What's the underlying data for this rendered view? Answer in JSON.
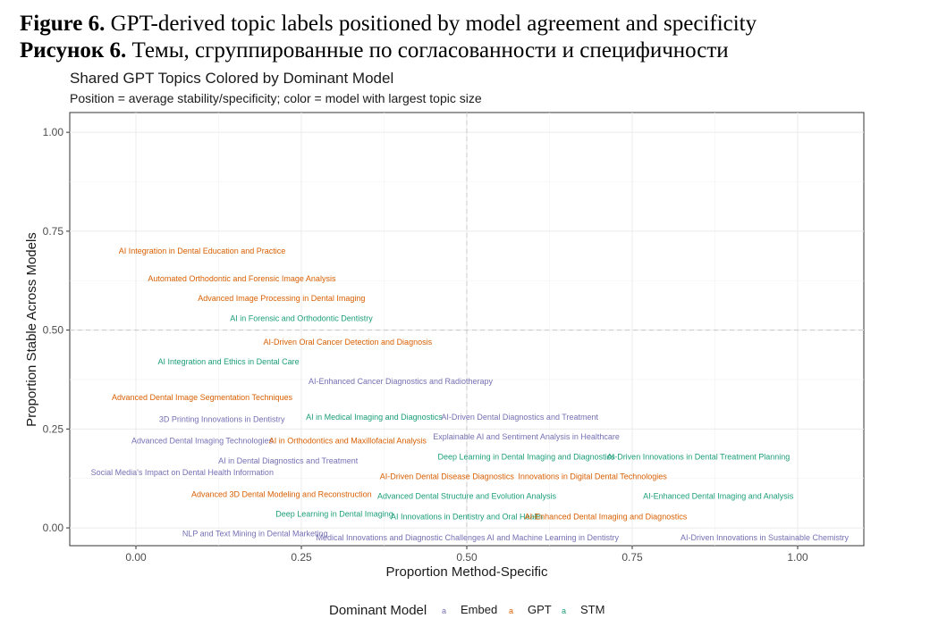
{
  "captions": {
    "line1_bold": "Figure 6.",
    "line1_text": " GPT-derived topic labels positioned by model agreement and specificity",
    "line2_bold": "Рисунок 6.",
    "line2_text": " Темы, сгруппированные по согласованности и специфичности"
  },
  "chart_data": {
    "type": "scatter",
    "title": "Shared GPT Topics Colored by Dominant Model",
    "subtitle": "Position = average stability/specificity; color = model with largest topic size",
    "xlabel": "Proportion Method-Specific",
    "ylabel": "Proportion Stable Across Models",
    "xlim": [
      -0.1,
      1.1
    ],
    "ylim": [
      -0.045,
      1.05
    ],
    "xticks": [
      0.0,
      0.25,
      0.5,
      0.75,
      1.0
    ],
    "xtick_labels": [
      "0.00",
      "0.25",
      "0.50",
      "0.75",
      "1.00"
    ],
    "yticks": [
      0.0,
      0.25,
      0.5,
      0.75,
      1.0
    ],
    "ytick_labels": [
      "0.00",
      "0.25",
      "0.50",
      "0.75",
      "1.00"
    ],
    "reference_lines": {
      "x": 0.5,
      "y": 0.5,
      "style": "dashed"
    },
    "grid": true,
    "legend": {
      "title": "Dominant Model",
      "position": "bottom",
      "glyph": "a",
      "entries": [
        {
          "name": "Embed",
          "color": "#7570b3"
        },
        {
          "name": "GPT",
          "color": "#d95f02"
        },
        {
          "name": "STM",
          "color": "#1b9e77"
        }
      ]
    },
    "points": [
      {
        "label": "AI Integration in Dental Education and Practice",
        "model": "GPT",
        "x": 0.1,
        "y": 0.7
      },
      {
        "label": "Automated Orthodontic and Forensic Image Analysis",
        "model": "GPT",
        "x": 0.16,
        "y": 0.63
      },
      {
        "label": "Advanced Image Processing in Dental Imaging",
        "model": "GPT",
        "x": 0.22,
        "y": 0.58
      },
      {
        "label": "AI in Forensic and Orthodontic Dentistry",
        "model": "STM",
        "x": 0.25,
        "y": 0.53
      },
      {
        "label": "AI-Driven Oral Cancer Detection and Diagnosis",
        "model": "GPT",
        "x": 0.32,
        "y": 0.47
      },
      {
        "label": "AI Integration and Ethics in Dental Care",
        "model": "STM",
        "x": 0.14,
        "y": 0.42
      },
      {
        "label": "AI-Enhanced Cancer Diagnostics and Radiotherapy",
        "model": "Embed",
        "x": 0.4,
        "y": 0.37
      },
      {
        "label": "Advanced Dental Image Segmentation Techniques",
        "model": "GPT",
        "x": 0.1,
        "y": 0.33
      },
      {
        "label": "3D Printing Innovations in Dentistry",
        "model": "Embed",
        "x": 0.13,
        "y": 0.275
      },
      {
        "label": "AI in Medical Imaging and Diagnostics",
        "model": "STM",
        "x": 0.36,
        "y": 0.28
      },
      {
        "label": "AI-Driven Dental Diagnostics and Treatment",
        "model": "Embed",
        "x": 0.58,
        "y": 0.28
      },
      {
        "label": "Explainable AI and Sentiment Analysis in Healthcare",
        "model": "Embed",
        "x": 0.59,
        "y": 0.23
      },
      {
        "label": "Advanced Dental Imaging Technologies",
        "model": "Embed",
        "x": 0.1,
        "y": 0.22
      },
      {
        "label": "AI in Orthodontics and Maxillofacial Analysis",
        "model": "GPT",
        "x": 0.32,
        "y": 0.22
      },
      {
        "label": "Deep Learning in Dental Imaging and Diagnostics",
        "model": "STM",
        "x": 0.59,
        "y": 0.18
      },
      {
        "label": "AI-Driven Innovations in Dental Treatment Planning",
        "model": "STM",
        "x": 0.85,
        "y": 0.18
      },
      {
        "label": "AI in Dental Diagnostics and Treatment",
        "model": "Embed",
        "x": 0.23,
        "y": 0.17
      },
      {
        "label": "Social Media's Impact on Dental Health Information",
        "model": "Embed",
        "x": 0.07,
        "y": 0.14
      },
      {
        "label": "AI-Driven Dental Disease Diagnostics",
        "model": "GPT",
        "x": 0.47,
        "y": 0.13
      },
      {
        "label": "Innovations in Digital Dental Technologies",
        "model": "GPT",
        "x": 0.69,
        "y": 0.13
      },
      {
        "label": "Advanced 3D Dental Modeling and Reconstruction",
        "model": "GPT",
        "x": 0.22,
        "y": 0.085
      },
      {
        "label": "Advanced Dental Structure and Evolution Analysis",
        "model": "STM",
        "x": 0.5,
        "y": 0.08
      },
      {
        "label": "AI-Enhanced Dental Imaging and Analysis",
        "model": "STM",
        "x": 0.88,
        "y": 0.08
      },
      {
        "label": "Deep Learning in Dental Imaging",
        "model": "STM",
        "x": 0.3,
        "y": 0.035
      },
      {
        "label": "AI Innovations in Dentistry and Oral Health",
        "model": "STM",
        "x": 0.5,
        "y": 0.028
      },
      {
        "label": "AI-Enhanced Dental Imaging and Diagnostics",
        "model": "GPT",
        "x": 0.71,
        "y": 0.028
      },
      {
        "label": "NLP and Text Mining in Dental Marketing",
        "model": "Embed",
        "x": 0.18,
        "y": -0.015
      },
      {
        "label": "Medical Innovations and Diagnostic Challenges",
        "model": "Embed",
        "x": 0.4,
        "y": -0.025
      },
      {
        "label": "AI and Machine Learning in Dentistry",
        "model": "Embed",
        "x": 0.63,
        "y": -0.025
      },
      {
        "label": "AI-Driven Innovations in Sustainable Chemistry",
        "model": "Embed",
        "x": 0.95,
        "y": -0.025
      }
    ]
  }
}
